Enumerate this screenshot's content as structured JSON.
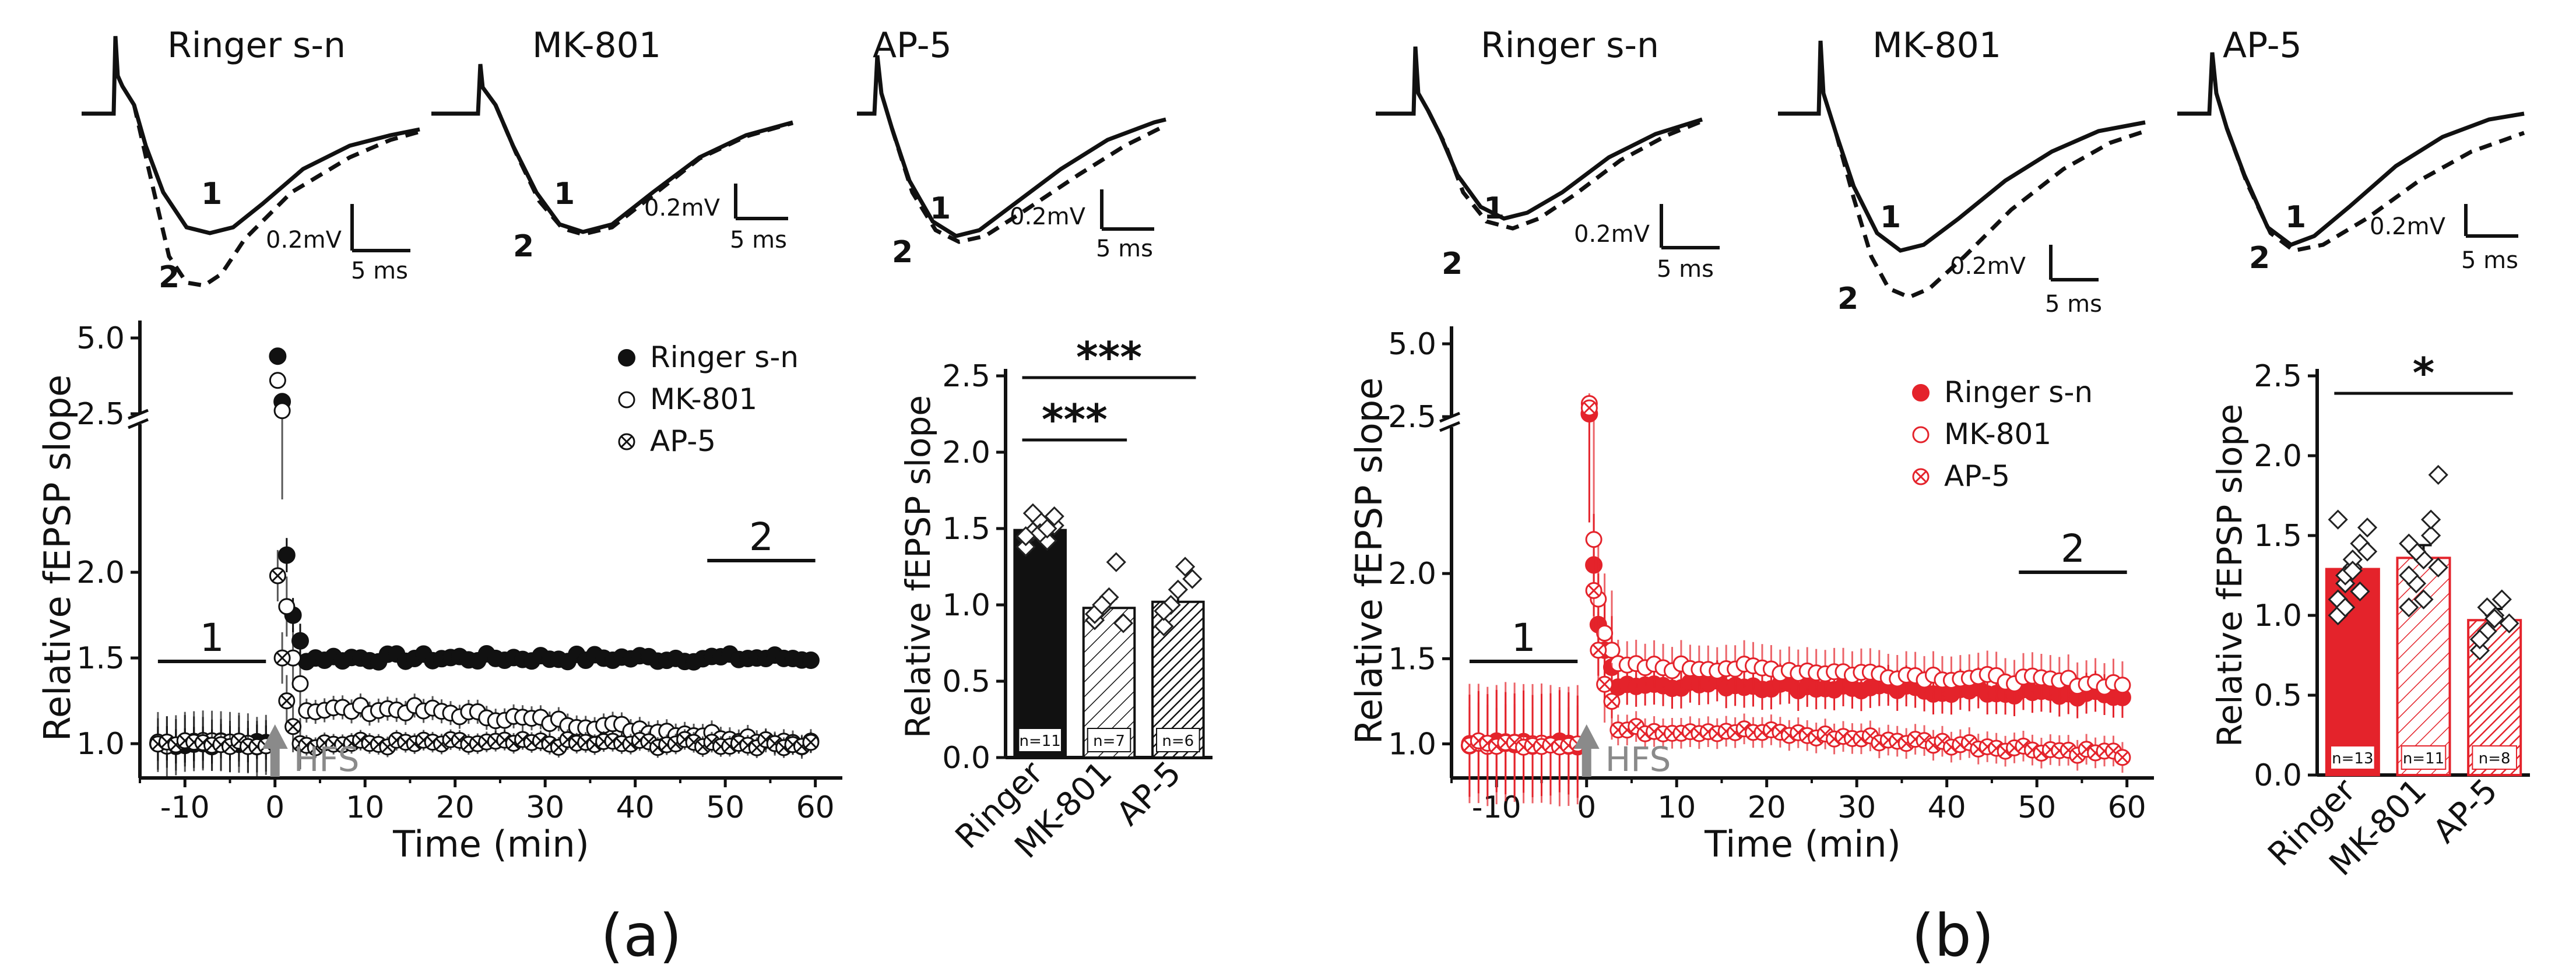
{
  "panels": [
    {
      "id": "a",
      "label": "(a)",
      "traces": [
        {
          "title": "Ringer s-n",
          "scale_mv": "0.2mV",
          "scale_ms": "5 ms",
          "mark1": "1",
          "mark2": "2"
        },
        {
          "title": "MK-801",
          "scale_mv": "0.2mV",
          "scale_ms": "5 ms",
          "mark1": "1",
          "mark2": "2"
        },
        {
          "title": "AP-5",
          "scale_mv": "0.2mV",
          "scale_ms": "5 ms",
          "mark1": "1",
          "mark2": "2"
        }
      ],
      "hfs_label": "HFS",
      "period_labels": [
        "1",
        "2"
      ],
      "bar_labels": [
        "n=11",
        "n=7",
        "n=6"
      ],
      "significance": [
        "***",
        "***"
      ]
    },
    {
      "id": "b",
      "label": "(b)",
      "traces": [
        {
          "title": "Ringer s-n",
          "scale_mv": "0.2mV",
          "scale_ms": "5 ms",
          "mark1": "1",
          "mark2": "2"
        },
        {
          "title": "MK-801",
          "scale_mv": "0.2mV",
          "scale_ms": "5 ms",
          "mark1": "1",
          "mark2": "2"
        },
        {
          "title": "AP-5",
          "scale_mv": "0.2mV",
          "scale_ms": "5 ms",
          "mark1": "1",
          "mark2": "2"
        }
      ],
      "hfs_label": "HFS",
      "period_labels": [
        "1",
        "2"
      ],
      "bar_labels": [
        "n=13",
        "n=11",
        "n=8"
      ],
      "significance": [
        "*"
      ]
    }
  ],
  "chart_data": [
    {
      "type": "scatter",
      "panel": "a",
      "xlabel": "Time (min)",
      "ylabel": "Relative fEPSP slope",
      "xlim": [
        -15,
        63
      ],
      "xticks": [
        -10,
        0,
        10,
        20,
        30,
        40,
        50,
        60
      ],
      "yticks": [
        1.0,
        1.5,
        2.0,
        2.5,
        5.0
      ],
      "y_axis_break": [
        2.5,
        5.0
      ],
      "legend_position": "top-right",
      "color": "#111111",
      "series": [
        {
          "name": "Ringer s-n",
          "baseline": 1.0,
          "peak": [
            4.4,
            2.9,
            2.1,
            1.75,
            1.6
          ],
          "plateau": 1.5,
          "error": 0.04
        },
        {
          "name": "MK-801",
          "baseline": 1.0,
          "peak": [
            3.6,
            2.6,
            1.8,
            1.5,
            1.35
          ],
          "plateau": 1.2,
          "late_value": 1.0,
          "error": 0.07
        },
        {
          "name": "AP-5",
          "baseline": 1.0,
          "peak": [
            1.98,
            1.5,
            1.25,
            1.1,
            1.0
          ],
          "plateau": 1.0,
          "error": 0.06
        }
      ]
    },
    {
      "type": "bar",
      "panel": "a",
      "categories": [
        "Ringer",
        "MK-801",
        "AP-5"
      ],
      "values": [
        1.49,
        0.98,
        1.02
      ],
      "errors": [
        0.04,
        0.06,
        0.08
      ],
      "points": [
        [
          1.44,
          1.48,
          1.55,
          1.42,
          1.52,
          1.38,
          1.6,
          1.47,
          1.5,
          1.58,
          1.45
        ],
        [
          0.9,
          0.98,
          1.05,
          1.28,
          0.88,
          0.94,
          1.0
        ],
        [
          0.86,
          1.0,
          1.1,
          1.25,
          1.17,
          0.96
        ]
      ],
      "ylabel": "Relative fEPSP slope",
      "ylim": [
        0,
        2.5
      ],
      "yticks": [
        0.0,
        0.5,
        1.0,
        1.5,
        2.0,
        2.5
      ]
    },
    {
      "type": "scatter",
      "panel": "b",
      "xlabel": "Time (min)",
      "ylabel": "Relative fEPSP slope",
      "xlim": [
        -15,
        63
      ],
      "xticks": [
        -10,
        0,
        10,
        20,
        30,
        40,
        50,
        60
      ],
      "yticks": [
        1.0,
        1.5,
        2.0,
        2.5,
        5.0
      ],
      "y_axis_break": [
        2.5,
        5.0
      ],
      "legend_position": "top-right",
      "color": "#e4232b",
      "series": [
        {
          "name": "Ringer s-n",
          "baseline": 1.0,
          "peak": [
            2.6,
            2.05,
            1.7,
            1.55,
            1.45
          ],
          "plateau": 1.35,
          "late_value": 1.28,
          "error": 0.12
        },
        {
          "name": "MK-801",
          "baseline": 1.0,
          "peak": [
            2.95,
            2.2,
            1.85,
            1.65,
            1.55
          ],
          "plateau": 1.45,
          "late_value": 1.35,
          "error": 0.14
        },
        {
          "name": "AP-5",
          "baseline": 1.0,
          "peak": [
            2.8,
            1.9,
            1.55,
            1.35,
            1.25
          ],
          "plateau": 1.08,
          "late_value": 0.94,
          "error": 0.09
        }
      ]
    },
    {
      "type": "bar",
      "panel": "b",
      "categories": [
        "Ringer",
        "MK-801",
        "AP-5"
      ],
      "values": [
        1.29,
        1.36,
        0.97
      ],
      "errors": [
        0.06,
        0.08,
        0.07
      ],
      "points": [
        [
          1.1,
          1.2,
          1.3,
          1.45,
          1.55,
          1.0,
          1.25,
          1.35,
          1.15,
          1.4,
          1.6,
          1.05,
          1.28
        ],
        [
          1.05,
          1.2,
          1.35,
          1.5,
          1.88,
          1.25,
          1.4,
          1.1,
          1.6,
          1.3,
          1.45
        ],
        [
          0.78,
          0.9,
          1.0,
          1.1,
          0.95,
          0.85,
          1.05,
          0.98
        ]
      ],
      "ylabel": "Relative fEPSP slope",
      "ylim": [
        0,
        2.5
      ],
      "yticks": [
        0.0,
        0.5,
        1.0,
        1.5,
        2.0,
        2.5
      ]
    }
  ]
}
